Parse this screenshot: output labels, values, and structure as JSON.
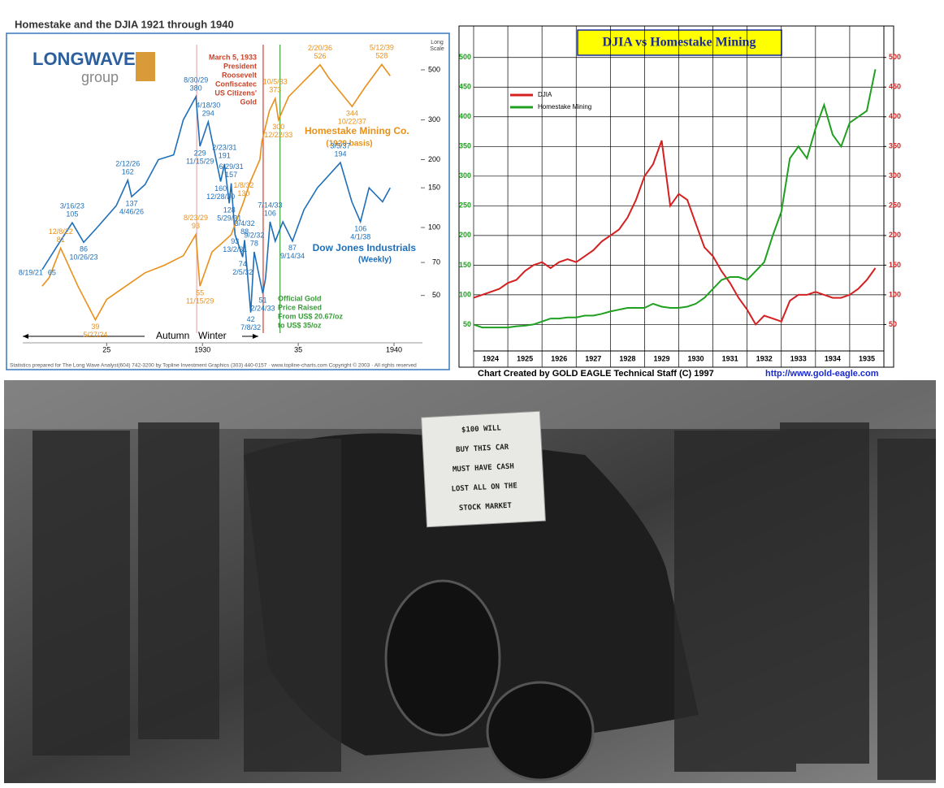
{
  "chart_data": [
    {
      "type": "line",
      "title": "Homestake and the DJIA 1921 through 1940",
      "log_scale": true,
      "logo": [
        "LONGWAVE",
        "group"
      ],
      "scale_note": [
        "Long",
        "Scale"
      ],
      "xlim": [
        1921,
        1940
      ],
      "ylim": [
        37,
        620
      ],
      "xticks": [
        {
          "value": 1925,
          "label": "25"
        },
        1930,
        {
          "value": 1935,
          "label": "35"
        },
        1940
      ],
      "yticks": [
        50,
        70,
        100,
        150,
        200,
        300,
        500
      ],
      "series": [
        {
          "name": "Dow Jones Industrials",
          "subname": "(Weekly)",
          "color": "#1f6fb8",
          "x": [
            1921.63,
            1922.5,
            1923.2,
            1923.8,
            1924.5,
            1925.5,
            1926.1,
            1926.3,
            1927,
            1927.7,
            1928.5,
            1929,
            1929.66,
            1929.87,
            1930.3,
            1930.95,
            1931.15,
            1931.4,
            1931.5,
            1931.7,
            1932.1,
            1932.2,
            1932.52,
            1932.7,
            1933.15,
            1933.3,
            1933.53,
            1933.8,
            1934.2,
            1934.7,
            1935.3,
            1936,
            1937.2,
            1937.8,
            1938.25,
            1938.7,
            1939.4,
            1939.8
          ],
          "values": [
            65,
            85,
            105,
            86,
            100,
            125,
            162,
            137,
            155,
            200,
            210,
            300,
            380,
            229,
            294,
            160,
            191,
            128,
            157,
            93,
            74,
            88,
            42,
            78,
            51,
            60,
            106,
            87,
            106,
            87,
            120,
            150,
            194,
            130,
            106,
            150,
            130,
            150
          ]
        },
        {
          "name": "Homestake Mining Co.",
          "subname": "(1929 basis)",
          "color": "#e8901a",
          "x": [
            1921.63,
            1922,
            1922.6,
            1923.5,
            1924.41,
            1925,
            1926,
            1927,
            1928,
            1929,
            1929.65,
            1929.87,
            1930.5,
            1931,
            1931.5,
            1932.15,
            1932.5,
            1933,
            1933.1,
            1933.5,
            1933.8,
            1933.97,
            1934.5,
            1935,
            1936.14,
            1936.6,
            1937.81,
            1938.5,
            1939.36,
            1939.8
          ],
          "values": [
            55,
            60,
            81,
            55,
            39,
            48,
            55,
            63,
            68,
            75,
            93,
            55,
            78,
            85,
            93,
            130,
            160,
            200,
            240,
            330,
            373,
            300,
            380,
            420,
            526,
            460,
            344,
            420,
            528,
            470
          ]
        }
      ],
      "annotations": [
        {
          "series": 0,
          "x": 1921.63,
          "value": 65,
          "label": "8/19/21",
          "pos": "left"
        },
        {
          "series": 0,
          "x": 1923.2,
          "value": 105,
          "label": "3/16/23",
          "pos": "above"
        },
        {
          "series": 0,
          "x": 1923.8,
          "value": 86,
          "label": "10/26/23",
          "pos": "below"
        },
        {
          "series": 0,
          "x": 1926.1,
          "value": 162,
          "label": "2/12/26",
          "pos": "above"
        },
        {
          "series": 0,
          "x": 1926.3,
          "value": 137,
          "label": "4/46/26",
          "pos": "below"
        },
        {
          "series": 0,
          "x": 1929.66,
          "value": 380,
          "label": "8/30/29",
          "pos": "above"
        },
        {
          "series": 0,
          "x": 1930.3,
          "value": 294,
          "label": "4/18/30",
          "pos": "above"
        },
        {
          "series": 0,
          "x": 1929.87,
          "value": 229,
          "label": "11/15/29",
          "pos": "below"
        },
        {
          "series": 0,
          "x": 1930.95,
          "value": 160,
          "label": "12/28/30",
          "pos": "below"
        },
        {
          "series": 0,
          "x": 1931.15,
          "value": 191,
          "label": "2/23/31",
          "pos": "above"
        },
        {
          "series": 0,
          "x": 1931.4,
          "value": 128,
          "label": "5/29/31",
          "pos": "below"
        },
        {
          "series": 0,
          "x": 1931.5,
          "value": 157,
          "label": "6/29/31",
          "pos": "above"
        },
        {
          "series": 0,
          "x": 1931.7,
          "value": 93,
          "label": "13/2/31",
          "pos": "below"
        },
        {
          "series": 0,
          "x": 1932.1,
          "value": 74,
          "label": "2/5/32",
          "pos": "below"
        },
        {
          "series": 0,
          "x": 1932.2,
          "value": 88,
          "label": "3/4/32",
          "pos": "above"
        },
        {
          "series": 0,
          "x": 1932.52,
          "value": 42,
          "label": "7/8/32",
          "pos": "below"
        },
        {
          "series": 0,
          "x": 1932.7,
          "value": 78,
          "label": "9/2/32",
          "pos": "above"
        },
        {
          "series": 0,
          "x": 1933.15,
          "value": 51,
          "label": "2/24/33",
          "pos": "below"
        },
        {
          "series": 0,
          "x": 1933.53,
          "value": 106,
          "label": "7/14/33",
          "pos": "above"
        },
        {
          "series": 0,
          "x": 1934.7,
          "value": 87,
          "label": "9/14/34",
          "pos": "below"
        },
        {
          "series": 0,
          "x": 1937.2,
          "value": 194,
          "label": "3/5/37",
          "pos": "above"
        },
        {
          "series": 0,
          "x": 1938.25,
          "value": 106,
          "label": "4/1/38",
          "pos": "below"
        },
        {
          "series": 1,
          "x": 1922.6,
          "value": 81,
          "label": "12/8/22",
          "pos": "above"
        },
        {
          "series": 1,
          "x": 1924.41,
          "value": 39,
          "label": "5/27/24",
          "pos": "below"
        },
        {
          "series": 1,
          "x": 1929.65,
          "value": 93,
          "label": "8/23/29",
          "pos": "above"
        },
        {
          "series": 1,
          "x": 1929.87,
          "value": 55,
          "label": "11/15/29",
          "pos": "below"
        },
        {
          "series": 1,
          "x": 1932.15,
          "value": 130,
          "label": "1/8/32",
          "pos": "above"
        },
        {
          "series": 1,
          "x": 1933.8,
          "value": 373,
          "label": "10/5/33",
          "pos": "above"
        },
        {
          "series": 1,
          "x": 1933.97,
          "value": 300,
          "label": "12/22/33",
          "pos": "below"
        },
        {
          "series": 1,
          "x": 1936.14,
          "value": 526,
          "label": "2/20/36",
          "pos": "above"
        },
        {
          "series": 1,
          "x": 1937.81,
          "value": 344,
          "label": "10/22/37",
          "pos": "below"
        },
        {
          "series": 1,
          "x": 1939.36,
          "value": 528,
          "label": "5/12/39",
          "pos": "above"
        }
      ],
      "vlines": [
        {
          "x": 1929.7,
          "color": "#e8b0b0"
        },
        {
          "x": 1933.17,
          "color": "#d04030"
        },
        {
          "x": 1934.05,
          "color": "#40a040"
        }
      ],
      "roosevelt_note": [
        "March 5, 1933",
        "President",
        "Roosevelt",
        "Confiscatec",
        "US Citizens'",
        "Gold"
      ],
      "gold_note": [
        "Official Gold",
        "Price Raised",
        "From US$ 20.67/oz",
        "to US$ 35/oz"
      ],
      "seasons": [
        "Autumn",
        "Winter"
      ],
      "footer": "Statistics prepared for The Long Wave Analyst(604) 742-3200 by Topline Investment Graphics (303) 440-0157 · www.topline-charts.com Copyright © 2003 · All rights reserved"
    },
    {
      "type": "line",
      "title": "DJIA  vs  Homestake Mining",
      "xlim": [
        1924,
        1936
      ],
      "ylim": [
        15,
        553
      ],
      "y2lim": [
        15,
        553
      ],
      "xticks": [
        1924,
        1925,
        1926,
        1927,
        1928,
        1929,
        1930,
        1931,
        1932,
        1933,
        1934,
        1935
      ],
      "yticks": [
        50,
        100,
        150,
        200,
        250,
        300,
        350,
        400,
        450,
        500
      ],
      "y2ticks": [
        50,
        100,
        150,
        200,
        250,
        300,
        350,
        400,
        450,
        500
      ],
      "grid": true,
      "x": [
        1924,
        1924.25,
        1924.5,
        1924.75,
        1925,
        1925.25,
        1925.5,
        1925.75,
        1926,
        1926.25,
        1926.5,
        1926.75,
        1927,
        1927.25,
        1927.5,
        1927.75,
        1928,
        1928.25,
        1928.5,
        1928.75,
        1929,
        1929.25,
        1929.5,
        1929.75,
        1930,
        1930.25,
        1930.5,
        1930.75,
        1931,
        1931.25,
        1931.5,
        1931.75,
        1932,
        1932.25,
        1932.5,
        1932.75,
        1933,
        1933.25,
        1933.5,
        1933.75,
        1934,
        1934.25,
        1934.5,
        1934.75,
        1935,
        1935.25,
        1935.5,
        1935.75
      ],
      "series": [
        {
          "name": "DJIA",
          "color": "#d42020",
          "axis": "y2",
          "values": [
            95,
            100,
            105,
            110,
            120,
            125,
            140,
            150,
            155,
            145,
            155,
            160,
            155,
            165,
            175,
            190,
            200,
            210,
            230,
            260,
            300,
            320,
            360,
            250,
            270,
            260,
            220,
            180,
            165,
            140,
            120,
            95,
            75,
            50,
            65,
            60,
            55,
            90,
            100,
            100,
            105,
            100,
            95,
            95,
            100,
            110,
            125,
            145
          ]
        },
        {
          "name": "Homestake Mining",
          "color": "#20a020",
          "values": [
            50,
            45,
            45,
            45,
            45,
            47,
            48,
            50,
            55,
            60,
            60,
            62,
            62,
            65,
            65,
            68,
            72,
            75,
            78,
            78,
            78,
            85,
            80,
            78,
            78,
            80,
            85,
            95,
            110,
            125,
            130,
            130,
            125,
            140,
            155,
            200,
            240,
            330,
            350,
            330,
            380,
            420,
            370,
            350,
            390,
            400,
            410,
            480
          ]
        }
      ],
      "credit": "Chart Created by GOLD EAGLE Technical Staff (C) 1997",
      "url": "http://www.gold-eagle.com"
    }
  ],
  "photo": {
    "sign": [
      "$100 WILL",
      "BUY THIS CAR",
      "MUST HAVE CASH",
      "LOST ALL ON THE",
      "STOCK MARKET"
    ]
  }
}
